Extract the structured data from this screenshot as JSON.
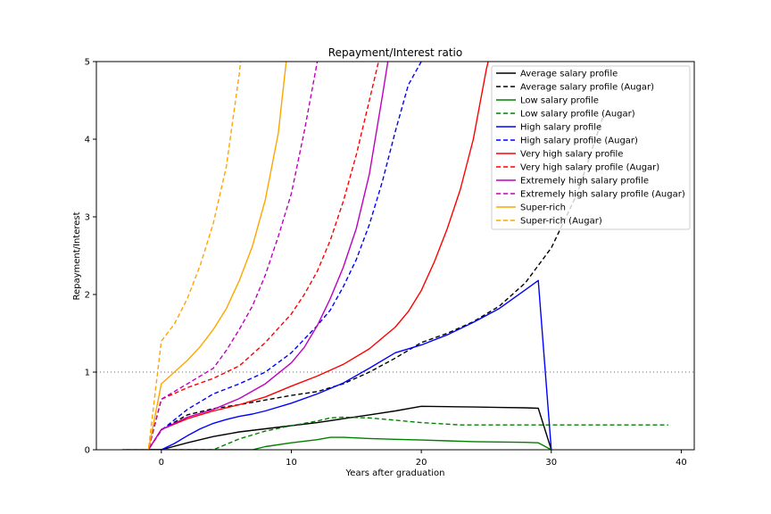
{
  "chart_data": {
    "type": "line",
    "title": "Repayment/Interest ratio",
    "xlabel": "Years after graduation",
    "ylabel": "Repayment/Interest",
    "xlim": [
      -5,
      41
    ],
    "ylim": [
      0,
      5
    ],
    "xticks": [
      0,
      10,
      20,
      30,
      40
    ],
    "yticks": [
      0,
      1,
      2,
      3,
      4,
      5
    ],
    "reference_line": {
      "y": 1,
      "style": "dotted",
      "color": "#808080"
    },
    "legend_position": "upper-right",
    "series": [
      {
        "name": "Average salary profile",
        "color": "#000000",
        "dash": "solid",
        "x": [
          -3,
          -1,
          0,
          2,
          4,
          6,
          8,
          10,
          12,
          14,
          16,
          18,
          20,
          22,
          24,
          26,
          28,
          29,
          30
        ],
        "y": [
          0,
          0,
          0,
          0.09,
          0.17,
          0.23,
          0.27,
          0.31,
          0.35,
          0.4,
          0.45,
          0.5,
          0.56,
          0.555,
          0.55,
          0.545,
          0.54,
          0.535,
          0
        ]
      },
      {
        "name": "Average salary profile (Augar)",
        "color": "#000000",
        "dash": "dashed",
        "x": [
          -3,
          -1,
          0,
          2,
          4,
          6,
          8,
          10,
          12,
          14,
          16,
          18,
          20,
          22,
          24,
          26,
          28,
          30,
          32,
          34
        ],
        "y": [
          0,
          0,
          0.26,
          0.45,
          0.53,
          0.58,
          0.64,
          0.7,
          0.75,
          0.85,
          1.0,
          1.18,
          1.38,
          1.5,
          1.65,
          1.85,
          2.15,
          2.6,
          3.3,
          4.3
        ]
      },
      {
        "name": "Low salary profile",
        "color": "#008000",
        "dash": "solid",
        "x": [
          -3,
          0,
          4,
          7,
          8,
          10,
          12,
          13,
          14,
          16,
          18,
          20,
          22,
          24,
          26,
          28,
          29,
          30
        ],
        "y": [
          0,
          0,
          0,
          0,
          0.04,
          0.09,
          0.13,
          0.16,
          0.16,
          0.145,
          0.135,
          0.125,
          0.115,
          0.105,
          0.1,
          0.095,
          0.09,
          0
        ]
      },
      {
        "name": "Low salary profile (Augar)",
        "color": "#008000",
        "dash": "dashed",
        "x": [
          -3,
          0,
          4,
          6,
          8,
          10,
          12,
          13,
          14,
          16,
          18,
          20,
          22,
          23,
          26,
          30,
          35,
          39
        ],
        "y": [
          0,
          0,
          0,
          0.14,
          0.24,
          0.31,
          0.37,
          0.41,
          0.42,
          0.41,
          0.38,
          0.35,
          0.33,
          0.32,
          0.32,
          0.32,
          0.32,
          0.32
        ]
      },
      {
        "name": "High salary profile",
        "color": "#0000ff",
        "dash": "solid",
        "x": [
          -3,
          0,
          1,
          2,
          3,
          4,
          5,
          6,
          7,
          8,
          10,
          12,
          14,
          16,
          18,
          20,
          22,
          24,
          26,
          28,
          29,
          30
        ],
        "y": [
          0,
          0,
          0.08,
          0.18,
          0.27,
          0.34,
          0.39,
          0.43,
          0.46,
          0.5,
          0.6,
          0.72,
          0.86,
          1.05,
          1.25,
          1.35,
          1.48,
          1.64,
          1.82,
          2.06,
          2.18,
          0
        ]
      },
      {
        "name": "High salary profile (Augar)",
        "color": "#0000ff",
        "dash": "dashed",
        "x": [
          -3,
          -1,
          0,
          2,
          4,
          6,
          8,
          10,
          12,
          13,
          14,
          15,
          16,
          17,
          18,
          19,
          20,
          21
        ],
        "y": [
          0,
          0,
          0.25,
          0.52,
          0.72,
          0.85,
          1.0,
          1.25,
          1.6,
          1.8,
          2.1,
          2.45,
          2.9,
          3.45,
          4.1,
          4.7,
          5.0,
          5.6
        ]
      },
      {
        "name": "Very high salary profile",
        "color": "#ff0000",
        "dash": "solid",
        "x": [
          -3,
          -1,
          0,
          2,
          4,
          6,
          8,
          10,
          12,
          14,
          16,
          18,
          19,
          20,
          21,
          22,
          23,
          24,
          25,
          26
        ],
        "y": [
          0,
          0,
          0.26,
          0.4,
          0.5,
          0.58,
          0.68,
          0.82,
          0.95,
          1.1,
          1.3,
          1.58,
          1.78,
          2.05,
          2.42,
          2.85,
          3.35,
          4.0,
          4.9,
          5.6
        ]
      },
      {
        "name": "Very high salary profile (Augar)",
        "color": "#ff0000",
        "dash": "dashed",
        "x": [
          -3,
          -1,
          0,
          2,
          4,
          6,
          8,
          10,
          11,
          12,
          13,
          14,
          15,
          16,
          17
        ],
        "y": [
          0,
          0,
          0.65,
          0.8,
          0.92,
          1.08,
          1.38,
          1.75,
          2.0,
          2.3,
          2.7,
          3.2,
          3.8,
          4.5,
          5.2
        ]
      },
      {
        "name": "Extremely high salary profile",
        "color": "#bf00bf",
        "dash": "solid",
        "x": [
          -3,
          -1,
          0,
          2,
          4,
          6,
          8,
          10,
          11,
          12,
          13,
          14,
          15,
          16,
          17,
          18
        ],
        "y": [
          0,
          0,
          0.26,
          0.42,
          0.52,
          0.66,
          0.85,
          1.12,
          1.32,
          1.6,
          1.95,
          2.35,
          2.85,
          3.55,
          4.55,
          5.6
        ]
      },
      {
        "name": "Extremely high salary profile (Augar)",
        "color": "#bf00bf",
        "dash": "dashed",
        "x": [
          -3,
          -1,
          0,
          2,
          4,
          5,
          6,
          7,
          8,
          9,
          10,
          11,
          12,
          13
        ],
        "y": [
          0,
          0,
          0.65,
          0.85,
          1.05,
          1.28,
          1.55,
          1.85,
          2.25,
          2.75,
          3.3,
          4.1,
          5.0,
          6.0
        ]
      },
      {
        "name": "Super-rich",
        "color": "#ffa500",
        "dash": "solid",
        "x": [
          -3,
          -1,
          0,
          1,
          2,
          3,
          4,
          5,
          6,
          7,
          8,
          9,
          10
        ],
        "y": [
          0,
          0,
          0.85,
          1.0,
          1.15,
          1.33,
          1.55,
          1.82,
          2.18,
          2.62,
          3.22,
          4.08,
          5.6
        ]
      },
      {
        "name": "Super-rich (Augar)",
        "color": "#ffa500",
        "dash": "dashed",
        "x": [
          -3,
          -1,
          0,
          1,
          2,
          3,
          4,
          5,
          6,
          6.5
        ],
        "y": [
          0,
          0,
          1.4,
          1.62,
          1.95,
          2.38,
          2.92,
          3.65,
          4.85,
          5.6
        ]
      }
    ]
  }
}
